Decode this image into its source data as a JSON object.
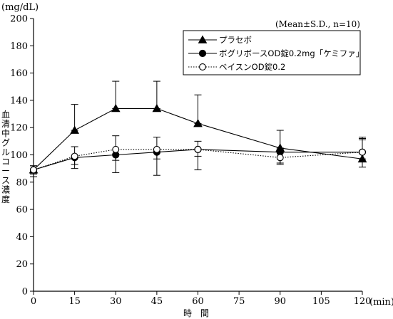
{
  "chart_data": {
    "type": "line",
    "y_unit_label": "(mg/dL)",
    "x_unit_label": "(min)",
    "xlabel": "時　間",
    "ylabel": "血清中グルコース濃度",
    "annotation": "(Mean±S.D., n=10)",
    "xlim": [
      0,
      120
    ],
    "ylim": [
      0,
      200
    ],
    "x_ticks": [
      0,
      15,
      30,
      45,
      60,
      75,
      90,
      105,
      120
    ],
    "y_ticks": [
      0,
      20,
      40,
      60,
      80,
      100,
      120,
      140,
      160,
      180,
      200
    ],
    "x": [
      0,
      15,
      30,
      45,
      60,
      90,
      120
    ],
    "series": [
      {
        "name": "プラセボ",
        "marker": "filled-triangle",
        "line_style": "solid",
        "values": [
          89,
          118,
          134,
          134,
          123,
          105,
          97
        ],
        "sd_upper": [
          92,
          137,
          154,
          154,
          144,
          118,
          112
        ],
        "sd_lower": [
          86,
          118,
          134,
          134,
          123,
          105,
          97
        ]
      },
      {
        "name": "ボグリボースOD錠0.2mg「ケミファ」",
        "marker": "filled-circle",
        "line_style": "solid",
        "values": [
          89,
          98,
          100,
          102,
          104,
          102,
          102
        ],
        "sd_upper": [
          89,
          98,
          100,
          102,
          104,
          102,
          113
        ],
        "sd_lower": [
          84,
          90,
          87,
          85,
          89,
          94,
          91
        ]
      },
      {
        "name": "ベイスンOD錠0.2",
        "marker": "open-circle",
        "line_style": "dotted",
        "values": [
          89,
          99,
          104,
          104,
          104,
          98,
          102
        ],
        "sd_upper": [
          92,
          106,
          114,
          113,
          110,
          104,
          111
        ],
        "sd_lower": [
          86,
          93,
          96,
          97,
          99,
          93,
          95
        ]
      }
    ]
  }
}
